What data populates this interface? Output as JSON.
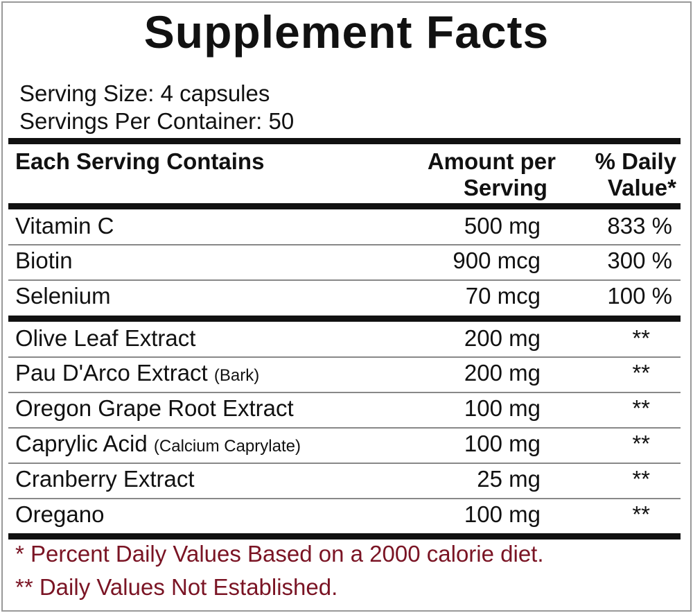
{
  "title": "Supplement Facts",
  "serving_size": "Serving Size: 4 capsules",
  "servings_per_container": "Servings Per Container: 50",
  "header": {
    "name": "Each Serving Contains",
    "amount": [
      "Amount per",
      "Serving"
    ],
    "dv": [
      "% Daily",
      "Value*"
    ]
  },
  "sections": [
    {
      "rows": [
        {
          "name": "Vitamin C",
          "amount": "500 mg",
          "dv": "833 %"
        },
        {
          "name": "Biotin",
          "amount": "900 mcg",
          "dv": "300 %"
        },
        {
          "name": "Selenium",
          "amount": "70 mcg",
          "dv": "100 %"
        }
      ]
    },
    {
      "rows": [
        {
          "name": "Olive Leaf Extract",
          "amount": "200 mg",
          "dv": "**"
        },
        {
          "name": "Pau D'Arco Extract",
          "note": "(Bark)",
          "amount": "200 mg",
          "dv": "**"
        },
        {
          "name": "Oregon Grape Root Extract",
          "amount": "100 mg",
          "dv": "**"
        },
        {
          "name": "Caprylic Acid",
          "note": "(Calcium Caprylate)",
          "amount": "100 mg",
          "dv": "**"
        },
        {
          "name": "Cranberry Extract",
          "amount": "25 mg",
          "dv": "**"
        },
        {
          "name": "Oregano",
          "amount": "100 mg",
          "dv": "**"
        }
      ]
    }
  ],
  "footnotes": [
    "* Percent Daily Values Based on a 2000 calorie diet.",
    "** Daily Values Not Established."
  ]
}
